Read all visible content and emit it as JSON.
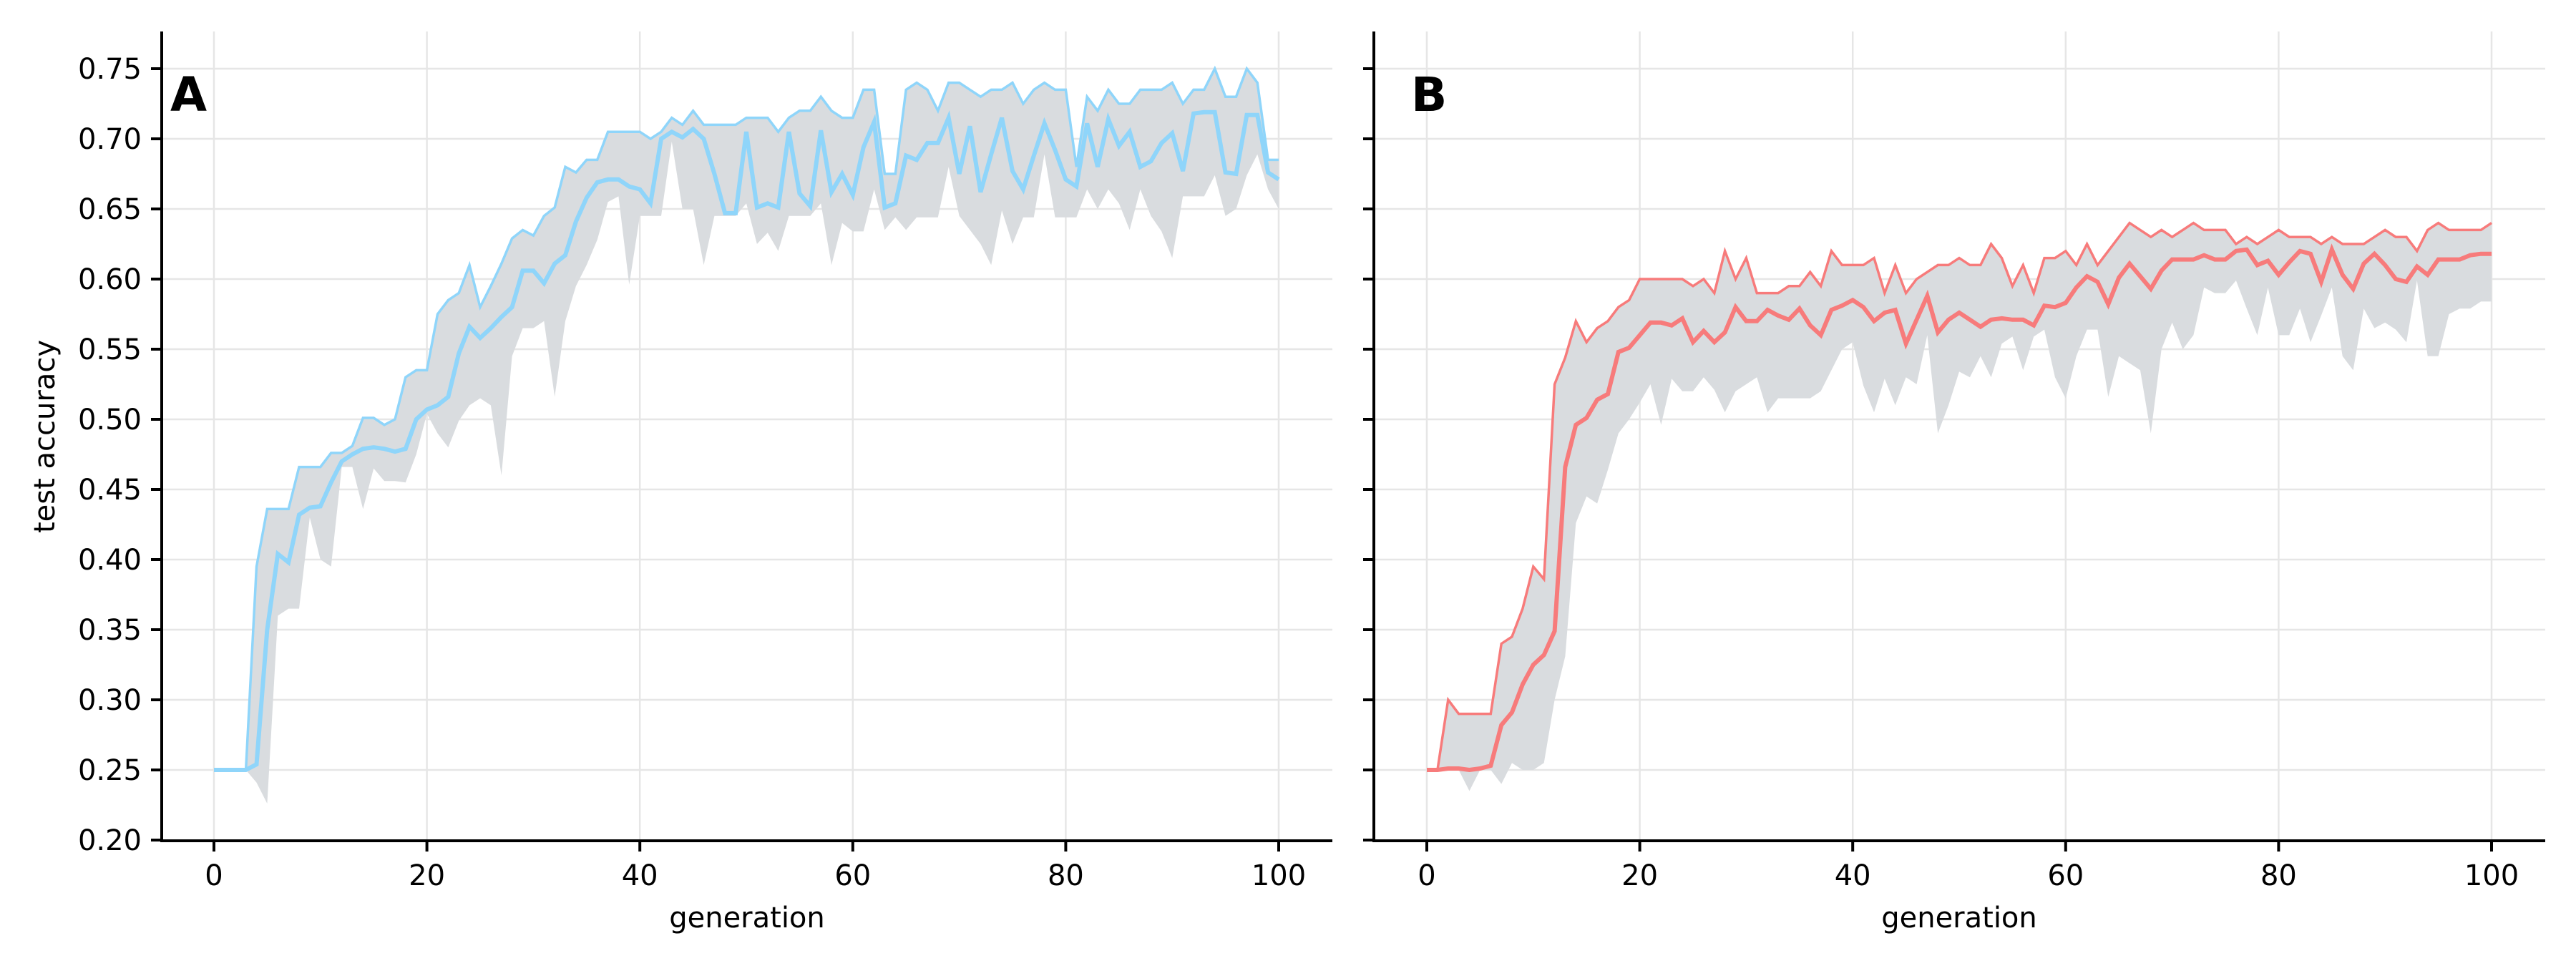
{
  "figure": {
    "ylabel": "test accuracy",
    "xlabel": "generation",
    "colors": {
      "panel_a_line": "#8fd5fa",
      "panel_b_line": "#f77b7b",
      "band_fill": "#d9dcdf",
      "grid": "#e6e6e6",
      "axis": "#000000"
    }
  },
  "chart_data": [
    {
      "type": "line",
      "panel_label": "A",
      "title": "",
      "xlabel": "generation",
      "ylabel": "test accuracy",
      "xlim": [
        -4.9,
        105.2
      ],
      "ylim": [
        0.2,
        0.776
      ],
      "xticks": [
        0,
        20,
        40,
        60,
        80,
        100
      ],
      "yticks": [
        0.2,
        0.25,
        0.3,
        0.35,
        0.4,
        0.45,
        0.5,
        0.55,
        0.6,
        0.65,
        0.7,
        0.75
      ],
      "ytick_labels": [
        "0.20",
        "0.25",
        "0.30",
        "0.35",
        "0.40",
        "0.45",
        "0.50",
        "0.55",
        "0.60",
        "0.65",
        "0.70",
        "0.75"
      ],
      "grid": true,
      "line_color": "#8fd5fa",
      "x": "generation 0..100",
      "series": [
        {
          "name": "max (upper)",
          "values": [
            0.25,
            0.25,
            0.25,
            0.25,
            0.395,
            0.436,
            0.436,
            0.436,
            0.466,
            0.466,
            0.466,
            0.476,
            0.476,
            0.481,
            0.501,
            0.501,
            0.496,
            0.5,
            0.53,
            0.535,
            0.535,
            0.575,
            0.585,
            0.59,
            0.61,
            0.58,
            0.595,
            0.611,
            0.629,
            0.635,
            0.631,
            0.645,
            0.651,
            0.68,
            0.676,
            0.685,
            0.685,
            0.705,
            0.705,
            0.705,
            0.705,
            0.7,
            0.705,
            0.715,
            0.71,
            0.72,
            0.71,
            0.71,
            0.71,
            0.71,
            0.715,
            0.715,
            0.715,
            0.705,
            0.715,
            0.72,
            0.72,
            0.73,
            0.72,
            0.715,
            0.715,
            0.735,
            0.735,
            0.675,
            0.675,
            0.735,
            0.74,
            0.735,
            0.72,
            0.74,
            0.74,
            0.735,
            0.73,
            0.735,
            0.735,
            0.74,
            0.725,
            0.735,
            0.74,
            0.735,
            0.735,
            0.68,
            0.73,
            0.72,
            0.735,
            0.725,
            0.725,
            0.735,
            0.735,
            0.735,
            0.74,
            0.725,
            0.735,
            0.735,
            0.75,
            0.73,
            0.73,
            0.75,
            0.74,
            0.685,
            0.685
          ]
        },
        {
          "name": "mean",
          "values": [
            0.25,
            0.25,
            0.25,
            0.25,
            0.254,
            0.35,
            0.404,
            0.398,
            0.432,
            0.437,
            0.438,
            0.455,
            0.47,
            0.475,
            0.479,
            0.48,
            0.479,
            0.477,
            0.479,
            0.5,
            0.507,
            0.51,
            0.516,
            0.547,
            0.566,
            0.558,
            0.565,
            0.573,
            0.58,
            0.606,
            0.606,
            0.597,
            0.611,
            0.617,
            0.641,
            0.658,
            0.669,
            0.671,
            0.671,
            0.666,
            0.664,
            0.654,
            0.7,
            0.705,
            0.701,
            0.707,
            0.7,
            0.675,
            0.647,
            0.647,
            0.705,
            0.651,
            0.654,
            0.651,
            0.705,
            0.661,
            0.652,
            0.706,
            0.662,
            0.675,
            0.66,
            0.694,
            0.712,
            0.651,
            0.654,
            0.688,
            0.685,
            0.697,
            0.697,
            0.715,
            0.675,
            0.709,
            0.662,
            0.689,
            0.715,
            0.677,
            0.664,
            0.688,
            0.711,
            0.692,
            0.671,
            0.666,
            0.711,
            0.68,
            0.714,
            0.695,
            0.705,
            0.68,
            0.684,
            0.697,
            0.704,
            0.677,
            0.718,
            0.719,
            0.719,
            0.676,
            0.675,
            0.717,
            0.717,
            0.676,
            0.671
          ]
        },
        {
          "name": "min (lower band)",
          "values": [
            0.25,
            0.25,
            0.25,
            0.25,
            0.241,
            0.226,
            0.36,
            0.365,
            0.365,
            0.43,
            0.4,
            0.395,
            0.466,
            0.466,
            0.436,
            0.465,
            0.456,
            0.456,
            0.455,
            0.475,
            0.504,
            0.49,
            0.48,
            0.499,
            0.51,
            0.515,
            0.51,
            0.46,
            0.545,
            0.565,
            0.565,
            0.57,
            0.516,
            0.57,
            0.595,
            0.61,
            0.628,
            0.655,
            0.659,
            0.596,
            0.645,
            0.645,
            0.645,
            0.698,
            0.65,
            0.65,
            0.61,
            0.645,
            0.645,
            0.645,
            0.654,
            0.625,
            0.633,
            0.62,
            0.645,
            0.645,
            0.645,
            0.654,
            0.61,
            0.64,
            0.634,
            0.634,
            0.664,
            0.635,
            0.644,
            0.635,
            0.644,
            0.644,
            0.644,
            0.68,
            0.645,
            0.635,
            0.625,
            0.61,
            0.649,
            0.625,
            0.644,
            0.644,
            0.689,
            0.644,
            0.644,
            0.644,
            0.664,
            0.65,
            0.664,
            0.654,
            0.635,
            0.664,
            0.645,
            0.634,
            0.615,
            0.659,
            0.659,
            0.659,
            0.674,
            0.645,
            0.65,
            0.674,
            0.689,
            0.664,
            0.65
          ]
        }
      ]
    },
    {
      "type": "line",
      "panel_label": "B",
      "title": "",
      "xlabel": "generation",
      "ylabel": "",
      "xlim": [
        -4.9,
        105.2
      ],
      "ylim": [
        0.2,
        0.776
      ],
      "xticks": [
        0,
        20,
        40,
        60,
        80,
        100
      ],
      "yticks": [
        0.2,
        0.25,
        0.3,
        0.35,
        0.4,
        0.45,
        0.5,
        0.55,
        0.6,
        0.65,
        0.7,
        0.75
      ],
      "ytick_labels": [],
      "grid": true,
      "line_color": "#f77b7b",
      "x": "generation 0..100",
      "series": [
        {
          "name": "max (upper)",
          "values": [
            0.25,
            0.25,
            0.3,
            0.29,
            0.29,
            0.29,
            0.29,
            0.34,
            0.345,
            0.365,
            0.395,
            0.386,
            0.525,
            0.544,
            0.57,
            0.555,
            0.565,
            0.57,
            0.58,
            0.585,
            0.6,
            0.6,
            0.6,
            0.6,
            0.6,
            0.595,
            0.6,
            0.59,
            0.62,
            0.6,
            0.615,
            0.59,
            0.59,
            0.59,
            0.595,
            0.595,
            0.605,
            0.595,
            0.62,
            0.61,
            0.61,
            0.61,
            0.615,
            0.59,
            0.61,
            0.59,
            0.6,
            0.605,
            0.61,
            0.61,
            0.615,
            0.61,
            0.61,
            0.625,
            0.615,
            0.595,
            0.61,
            0.59,
            0.615,
            0.615,
            0.62,
            0.61,
            0.625,
            0.61,
            0.62,
            0.63,
            0.64,
            0.635,
            0.63,
            0.635,
            0.63,
            0.635,
            0.64,
            0.635,
            0.635,
            0.635,
            0.625,
            0.63,
            0.625,
            0.63,
            0.635,
            0.63,
            0.63,
            0.63,
            0.625,
            0.63,
            0.625,
            0.625,
            0.625,
            0.63,
            0.635,
            0.63,
            0.63,
            0.62,
            0.635,
            0.64,
            0.635,
            0.635,
            0.635,
            0.635,
            0.64
          ]
        },
        {
          "name": "mean",
          "values": [
            0.25,
            0.25,
            0.251,
            0.251,
            0.25,
            0.251,
            0.253,
            0.282,
            0.291,
            0.311,
            0.325,
            0.332,
            0.349,
            0.466,
            0.496,
            0.501,
            0.514,
            0.518,
            0.548,
            0.551,
            0.56,
            0.569,
            0.569,
            0.567,
            0.572,
            0.555,
            0.563,
            0.555,
            0.562,
            0.58,
            0.57,
            0.57,
            0.578,
            0.574,
            0.571,
            0.579,
            0.567,
            0.56,
            0.578,
            0.581,
            0.585,
            0.58,
            0.57,
            0.576,
            0.578,
            0.554,
            0.571,
            0.588,
            0.562,
            0.571,
            0.576,
            0.571,
            0.566,
            0.571,
            0.572,
            0.571,
            0.571,
            0.567,
            0.581,
            0.58,
            0.583,
            0.594,
            0.602,
            0.598,
            0.582,
            0.601,
            0.611,
            0.602,
            0.593,
            0.606,
            0.614,
            0.614,
            0.614,
            0.617,
            0.614,
            0.614,
            0.62,
            0.621,
            0.61,
            0.613,
            0.603,
            0.612,
            0.62,
            0.618,
            0.598,
            0.621,
            0.603,
            0.593,
            0.611,
            0.618,
            0.61,
            0.6,
            0.598,
            0.609,
            0.603,
            0.614,
            0.614,
            0.614,
            0.617,
            0.618,
            0.618
          ]
        },
        {
          "name": "min (lower band)",
          "values": [
            0.25,
            0.25,
            0.25,
            0.25,
            0.235,
            0.25,
            0.25,
            0.24,
            0.255,
            0.25,
            0.25,
            0.255,
            0.3,
            0.331,
            0.426,
            0.445,
            0.44,
            0.464,
            0.49,
            0.5,
            0.512,
            0.525,
            0.496,
            0.529,
            0.52,
            0.52,
            0.53,
            0.521,
            0.505,
            0.52,
            0.525,
            0.53,
            0.505,
            0.515,
            0.515,
            0.515,
            0.515,
            0.52,
            0.535,
            0.55,
            0.555,
            0.524,
            0.505,
            0.529,
            0.51,
            0.53,
            0.525,
            0.56,
            0.49,
            0.51,
            0.534,
            0.53,
            0.545,
            0.53,
            0.554,
            0.559,
            0.535,
            0.559,
            0.564,
            0.53,
            0.515,
            0.545,
            0.564,
            0.564,
            0.516,
            0.545,
            0.54,
            0.535,
            0.49,
            0.55,
            0.569,
            0.55,
            0.56,
            0.594,
            0.59,
            0.59,
            0.599,
            0.579,
            0.56,
            0.594,
            0.56,
            0.56,
            0.579,
            0.555,
            0.574,
            0.594,
            0.545,
            0.535,
            0.579,
            0.565,
            0.569,
            0.564,
            0.555,
            0.599,
            0.545,
            0.545,
            0.575,
            0.579,
            0.579,
            0.584,
            0.584
          ]
        }
      ]
    }
  ]
}
